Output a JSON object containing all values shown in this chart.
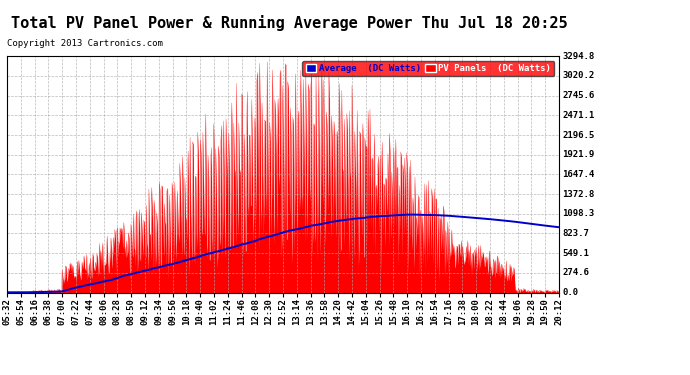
{
  "title": "Total PV Panel Power & Running Average Power Thu Jul 18 20:25",
  "copyright": "Copyright 2013 Cartronics.com",
  "ylabel_right_values": [
    0.0,
    274.6,
    549.1,
    823.7,
    1098.3,
    1372.8,
    1647.4,
    1921.9,
    2196.5,
    2471.1,
    2745.6,
    3020.2,
    3294.8
  ],
  "ymax": 3294.8,
  "background_color": "#ffffff",
  "plot_bg_color": "#ffffff",
  "grid_color": "#aaaaaa",
  "pv_color": "#ff0000",
  "avg_color": "#0000cc",
  "legend_bg": "#ff0000",
  "title_fontsize": 11,
  "copyright_fontsize": 6.5,
  "tick_label_fontsize": 6.5,
  "x_tick_labels": [
    "05:32",
    "05:54",
    "06:16",
    "06:38",
    "07:00",
    "07:22",
    "07:44",
    "08:06",
    "08:28",
    "08:50",
    "09:12",
    "09:34",
    "09:56",
    "10:18",
    "10:40",
    "11:02",
    "11:24",
    "11:46",
    "12:08",
    "12:30",
    "12:52",
    "13:14",
    "13:36",
    "13:58",
    "14:20",
    "14:42",
    "15:04",
    "15:26",
    "15:48",
    "16:10",
    "16:32",
    "16:54",
    "17:16",
    "17:38",
    "18:00",
    "18:22",
    "18:44",
    "19:06",
    "19:28",
    "19:50",
    "20:12"
  ],
  "legend_label_avg": "Average  (DC Watts)",
  "legend_label_pv": "PV Panels  (DC Watts)"
}
